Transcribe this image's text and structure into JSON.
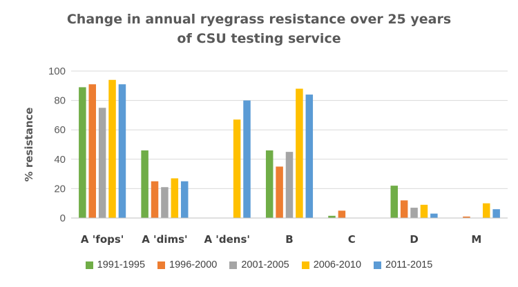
{
  "chart_data": {
    "type": "bar",
    "title_line1": "Change in annual ryegrass resistance over 25 years",
    "title_line2": "of CSU testing service",
    "ylabel": "% resistance",
    "xlabel": "",
    "ylim": [
      0,
      100
    ],
    "yticks": [
      0,
      20,
      40,
      60,
      80,
      100
    ],
    "grid": true,
    "legend_position": "bottom",
    "categories": [
      "A 'fops'",
      "A 'dims'",
      "A 'dens'",
      "B",
      "C",
      "D",
      "M"
    ],
    "series": [
      {
        "name": "1991-1995",
        "color": "#70AD47",
        "values": [
          89,
          46,
          0,
          46,
          1.5,
          22,
          0
        ]
      },
      {
        "name": "1996-2000",
        "color": "#ED7D31",
        "values": [
          91,
          25,
          0,
          35,
          5,
          12,
          1
        ]
      },
      {
        "name": "2001-2005",
        "color": "#A5A5A5",
        "values": [
          75,
          21,
          0,
          45,
          0,
          7,
          0
        ]
      },
      {
        "name": "2006-2010",
        "color": "#FFC000",
        "values": [
          94,
          27,
          67,
          88,
          0,
          9,
          10
        ]
      },
      {
        "name": "2011-2015",
        "color": "#5B9BD5",
        "values": [
          91,
          25,
          80,
          84,
          0,
          3,
          6
        ]
      }
    ]
  }
}
